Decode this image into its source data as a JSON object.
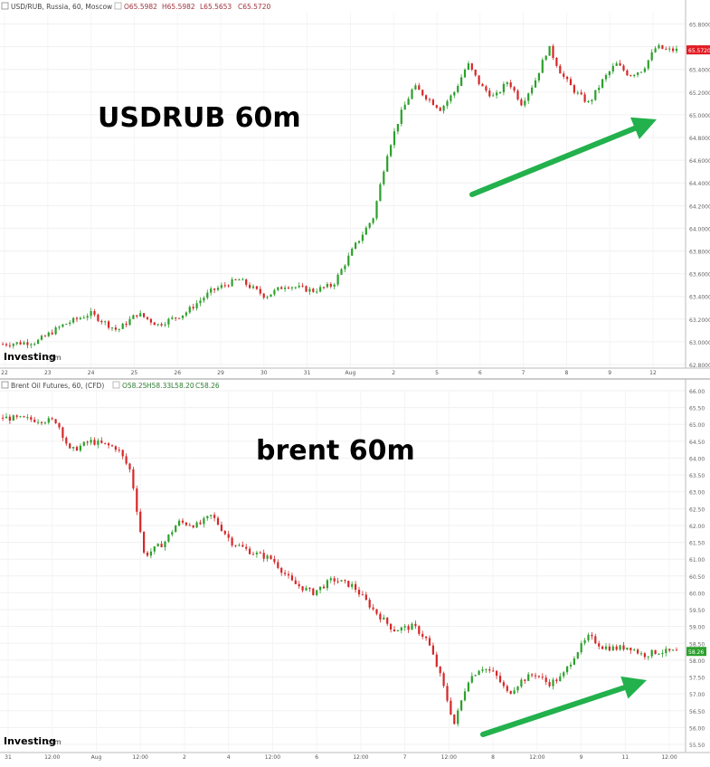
{
  "chart_data": [
    {
      "type": "candlestick",
      "header": {
        "symbol": "USD/RUB, Russia, 60, Moscow",
        "ohlc": {
          "open": "O65.5982",
          "high": "H65.5982",
          "low": "L65.5653",
          "close": "C65.5720"
        }
      },
      "annotation": "USDRUB 60m",
      "last_price_label": "65.5720",
      "ylim": [
        62.8,
        65.9
      ],
      "y_ticks": [
        "65.8000",
        "65.6000",
        "65.4000",
        "65.2000",
        "65.0000",
        "64.8000",
        "64.6000",
        "64.4000",
        "64.2000",
        "64.0000",
        "63.8000",
        "63.6000",
        "63.4000",
        "63.2000",
        "63.0000",
        "62.8000"
      ],
      "x_ticks": [
        "22",
        "23",
        "24",
        "25",
        "26",
        "29",
        "30",
        "31",
        "Aug",
        "2",
        "5",
        "6",
        "7",
        "8",
        "9",
        "12"
      ],
      "watermark": "Investing",
      "watermark_suffix": ".com",
      "up_color": "#2ca02c",
      "down_color": "#d62728",
      "trend_arrow_color": "#22b14c",
      "price_path": [
        [
          0,
          62.98
        ],
        [
          0.05,
          63.0
        ],
        [
          0.09,
          63.15
        ],
        [
          0.13,
          63.25
        ],
        [
          0.17,
          63.1
        ],
        [
          0.2,
          63.25
        ],
        [
          0.23,
          63.15
        ],
        [
          0.27,
          63.25
        ],
        [
          0.31,
          63.45
        ],
        [
          0.35,
          63.55
        ],
        [
          0.39,
          63.4
        ],
        [
          0.42,
          63.5
        ],
        [
          0.46,
          63.45
        ],
        [
          0.49,
          63.5
        ],
        [
          0.52,
          63.82
        ],
        [
          0.55,
          64.1
        ],
        [
          0.57,
          64.65
        ],
        [
          0.59,
          65.0
        ],
        [
          0.61,
          65.25
        ],
        [
          0.63,
          65.15
        ],
        [
          0.65,
          65.05
        ],
        [
          0.67,
          65.2
        ],
        [
          0.69,
          65.45
        ],
        [
          0.71,
          65.25
        ],
        [
          0.73,
          65.15
        ],
        [
          0.75,
          65.3
        ],
        [
          0.77,
          65.1
        ],
        [
          0.79,
          65.3
        ],
        [
          0.81,
          65.6
        ],
        [
          0.83,
          65.35
        ],
        [
          0.85,
          65.2
        ],
        [
          0.87,
          65.1
        ],
        [
          0.89,
          65.3
        ],
        [
          0.91,
          65.45
        ],
        [
          0.93,
          65.35
        ],
        [
          0.95,
          65.4
        ],
        [
          0.97,
          65.6
        ],
        [
          0.985,
          65.57
        ]
      ]
    },
    {
      "type": "candlestick",
      "header": {
        "symbol": "Brent Oil Futures, 60, (CFD)",
        "ohlc": {
          "open": "O58.25",
          "high": "H58.33",
          "low": "L58.20",
          "close": "C58.26"
        }
      },
      "annotation": "brent 60m",
      "last_price_label": "58.26",
      "ylim": [
        55.5,
        66.0
      ],
      "y_ticks": [
        "66.00",
        "65.50",
        "65.00",
        "64.50",
        "64.00",
        "63.50",
        "63.00",
        "62.50",
        "62.00",
        "61.50",
        "61.00",
        "60.50",
        "60.00",
        "59.50",
        "59.00",
        "58.50",
        "58.00",
        "57.50",
        "57.00",
        "56.50",
        "56.00",
        "55.50"
      ],
      "x_ticks": [
        "31",
        "12:00",
        "Aug",
        "12:00",
        "2",
        "4",
        "12:00",
        "6",
        "12:00",
        "7",
        "12:00",
        "8",
        "12:00",
        "9",
        "11",
        "12:00"
      ],
      "watermark": "Investing",
      "watermark_suffix": ".com",
      "up_color": "#2ca02c",
      "down_color": "#d62728",
      "trend_arrow_color": "#22b14c",
      "price_path": [
        [
          0,
          65.2
        ],
        [
          0.04,
          65.15
        ],
        [
          0.08,
          65.1
        ],
        [
          0.1,
          64.2
        ],
        [
          0.13,
          64.5
        ],
        [
          0.17,
          64.3
        ],
        [
          0.19,
          63.6
        ],
        [
          0.21,
          61.1
        ],
        [
          0.24,
          61.5
        ],
        [
          0.26,
          62.1
        ],
        [
          0.29,
          62.0
        ],
        [
          0.31,
          62.3
        ],
        [
          0.34,
          61.5
        ],
        [
          0.37,
          61.2
        ],
        [
          0.4,
          61.0
        ],
        [
          0.43,
          60.3
        ],
        [
          0.46,
          60.0
        ],
        [
          0.49,
          60.4
        ],
        [
          0.52,
          60.2
        ],
        [
          0.55,
          59.5
        ],
        [
          0.58,
          58.9
        ],
        [
          0.61,
          59.0
        ],
        [
          0.63,
          58.6
        ],
        [
          0.65,
          57.5
        ],
        [
          0.67,
          56.1
        ],
        [
          0.69,
          57.4
        ],
        [
          0.71,
          57.8
        ],
        [
          0.73,
          57.6
        ],
        [
          0.75,
          57.0
        ],
        [
          0.77,
          57.4
        ],
        [
          0.79,
          57.6
        ],
        [
          0.81,
          57.3
        ],
        [
          0.83,
          57.5
        ],
        [
          0.85,
          58.2
        ],
        [
          0.87,
          58.7
        ],
        [
          0.89,
          58.4
        ],
        [
          0.91,
          58.35
        ],
        [
          0.93,
          58.4
        ],
        [
          0.95,
          58.15
        ],
        [
          0.97,
          58.25
        ]
      ]
    }
  ]
}
